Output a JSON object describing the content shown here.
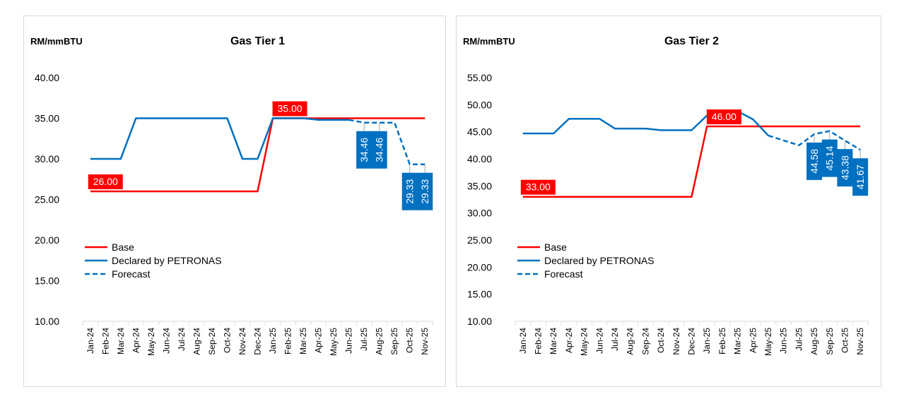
{
  "colors": {
    "base": "#ff0000",
    "declared": "#0070c0",
    "forecast": "#0070c0",
    "axis": "#d9d9d9",
    "border": "#d9d9d9"
  },
  "chart_data": [
    {
      "type": "line",
      "title": "Gas Tier 1",
      "ylabel": "RM/mmBTU",
      "xlabel": "",
      "ylim": [
        10,
        40
      ],
      "yticks": [
        "10.00",
        "15.00",
        "20.00",
        "25.00",
        "30.00",
        "35.00",
        "40.00"
      ],
      "categories": [
        "Jan-24",
        "Feb-24",
        "Mar-24",
        "Apr-24",
        "May-24",
        "Jun-24",
        "Jul-24",
        "Aug-24",
        "Sep-24",
        "Oct-24",
        "Nov-24",
        "Dec-24",
        "Jan-25",
        "Feb-25",
        "Mar-25",
        "Apr-25",
        "May-25",
        "Jun-25",
        "Jul-25",
        "Aug-25",
        "Sep-25",
        "Oct-25",
        "Nov-25"
      ],
      "grid": false,
      "legend_position": "bottom-left",
      "series": [
        {
          "name": "Base",
          "style": "solid",
          "color": "#ff0000",
          "values": [
            26,
            26,
            26,
            26,
            26,
            26,
            26,
            26,
            26,
            26,
            26,
            26,
            35,
            35,
            35,
            35,
            35,
            35,
            35,
            35,
            35,
            35,
            35
          ]
        },
        {
          "name": "Declared by PETRONAS",
          "style": "solid",
          "color": "#0070c0",
          "values": [
            30,
            30,
            30,
            35,
            35,
            35,
            35,
            35,
            35,
            35,
            30,
            30,
            35,
            35,
            35,
            34.8,
            34.8,
            34.8,
            null,
            null,
            null,
            null,
            null
          ]
        },
        {
          "name": "Forecast",
          "style": "dashed",
          "color": "#0070c0",
          "values": [
            null,
            null,
            null,
            null,
            null,
            null,
            null,
            null,
            null,
            null,
            null,
            null,
            null,
            null,
            null,
            null,
            null,
            34.8,
            34.46,
            34.46,
            34.46,
            29.33,
            29.33
          ]
        }
      ],
      "annotations": [
        {
          "label": "26.00",
          "category": "Jan-24",
          "value": 26,
          "style": "red-box"
        },
        {
          "label": "35.00",
          "category": "Feb-25",
          "value": 35,
          "style": "red-box"
        },
        {
          "label": "34.46",
          "category": "Jul-25",
          "value": 34.46,
          "style": "blue-box-vertical"
        },
        {
          "label": "34.46",
          "category": "Aug-25",
          "value": 34.46,
          "style": "blue-box-vertical"
        },
        {
          "label": "29.33",
          "category": "Oct-25",
          "value": 29.33,
          "style": "blue-box-vertical"
        },
        {
          "label": "29.33",
          "category": "Nov-25",
          "value": 29.33,
          "style": "blue-box-vertical"
        }
      ]
    },
    {
      "type": "line",
      "title": "Gas Tier 2",
      "ylabel": "RM/mmBTU",
      "xlabel": "",
      "ylim": [
        10,
        55
      ],
      "yticks": [
        "10.00",
        "15.00",
        "20.00",
        "25.00",
        "30.00",
        "35.00",
        "40.00",
        "45.00",
        "50.00",
        "55.00"
      ],
      "categories": [
        "Jan-24",
        "Feb-24",
        "Mar-24",
        "Apr-24",
        "May-24",
        "Jun-24",
        "Jul-24",
        "Aug-24",
        "Sep-24",
        "Oct-24",
        "Nov-24",
        "Dec-24",
        "Jan-25",
        "Feb-25",
        "Mar-25",
        "Apr-25",
        "May-25",
        "Jun-25",
        "Jul-25",
        "Aug-25",
        "Sep-25",
        "Oct-25",
        "Nov-25"
      ],
      "grid": false,
      "legend_position": "bottom-left",
      "series": [
        {
          "name": "Base",
          "style": "solid",
          "color": "#ff0000",
          "values": [
            33,
            33,
            33,
            33,
            33,
            33,
            33,
            33,
            33,
            33,
            33,
            33,
            46,
            46,
            46,
            46,
            46,
            46,
            46,
            46,
            46,
            46,
            46
          ]
        },
        {
          "name": "Declared by PETRONAS",
          "style": "solid",
          "color": "#0070c0",
          "values": [
            44.7,
            44.7,
            44.7,
            47.4,
            47.4,
            47.4,
            45.6,
            45.6,
            45.6,
            45.3,
            45.3,
            45.3,
            48.0,
            48.8,
            48.8,
            47.3,
            44.3,
            null,
            null,
            null,
            null,
            null,
            null
          ]
        },
        {
          "name": "Forecast",
          "style": "dashed",
          "color": "#0070c0",
          "values": [
            null,
            null,
            null,
            null,
            null,
            null,
            null,
            null,
            null,
            null,
            null,
            null,
            null,
            null,
            null,
            null,
            44.3,
            43.4,
            42.5,
            44.58,
            45.14,
            43.38,
            41.67
          ]
        }
      ],
      "annotations": [
        {
          "label": "33.00",
          "category": "Jan-24",
          "value": 33,
          "style": "red-box"
        },
        {
          "label": "46.00",
          "category": "Feb-25",
          "value": 46,
          "style": "red-box"
        },
        {
          "label": "44.58",
          "category": "Aug-25",
          "value": 44.58,
          "style": "blue-box-vertical"
        },
        {
          "label": "45.14",
          "category": "Sep-25",
          "value": 45.14,
          "style": "blue-box-vertical"
        },
        {
          "label": "43.38",
          "category": "Oct-25",
          "value": 43.38,
          "style": "blue-box-vertical"
        },
        {
          "label": "41.67",
          "category": "Nov-25",
          "value": 41.67,
          "style": "blue-box-vertical"
        }
      ]
    }
  ]
}
